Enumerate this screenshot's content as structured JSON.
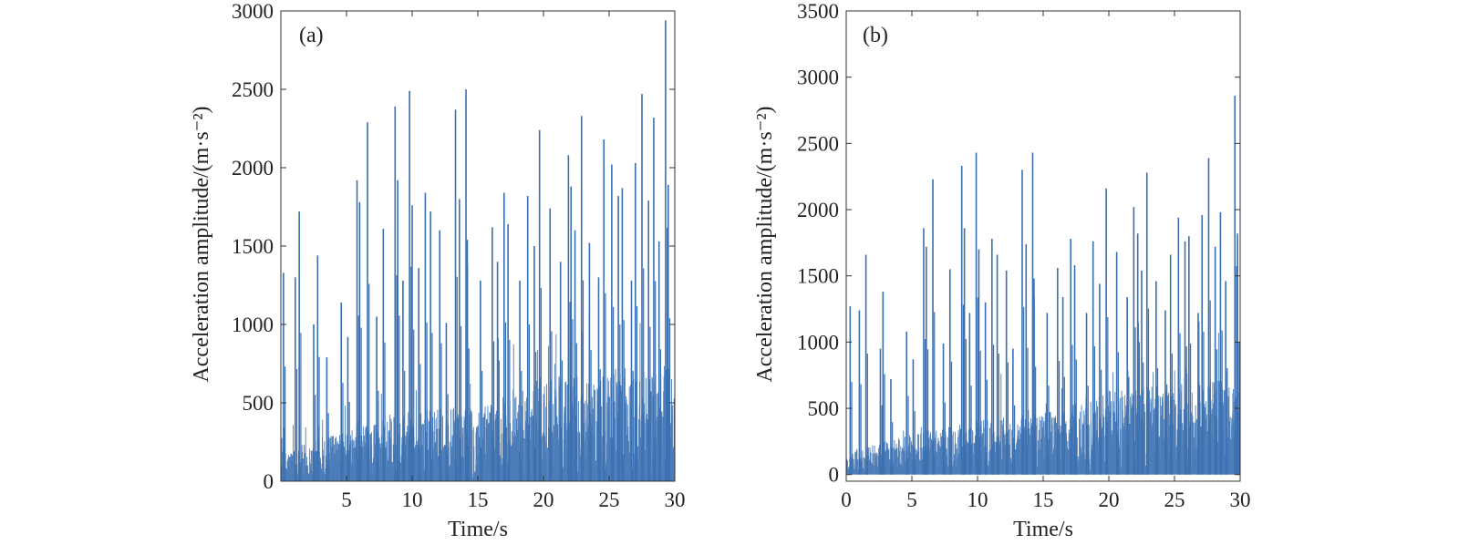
{
  "colors": {
    "signal": "#3a6fb0",
    "axis": "#333333",
    "background": "#ffffff"
  },
  "chart_data": [
    {
      "type": "line",
      "panel_label": "(a)",
      "xlabel": "Time/s",
      "ylabel": "Acceleration amplitude/(m·s⁻²)",
      "xlim": [
        0,
        30
      ],
      "ylim": [
        0,
        3000
      ],
      "xticks": [
        5,
        10,
        15,
        20,
        25,
        30
      ],
      "xtick_labels": [
        "5",
        "10",
        "15",
        "20",
        "25",
        "30"
      ],
      "yticks": [
        0,
        500,
        1000,
        1500,
        2000,
        2500,
        3000
      ],
      "ytick_labels": [
        "0",
        "500",
        "1000",
        "1500",
        "2000",
        "2500",
        "3000"
      ],
      "grid": false,
      "series": [
        {
          "values_description_note": "",
          "peaks_t": [
            0.2,
            1.1,
            1.4,
            2.5,
            2.8,
            3.5,
            4.6,
            5.1,
            5.8,
            6.0,
            6.6,
            7.3,
            7.8,
            8.7,
            8.9,
            9.3,
            9.8,
            10.0,
            10.5,
            11.0,
            11.4,
            12.1,
            12.6,
            13.3,
            13.6,
            14.1,
            14.2,
            15.2,
            16.1,
            16.5,
            17.0,
            17.3,
            18.2,
            18.8,
            19.3,
            19.7,
            20.5,
            21.3,
            21.9,
            22.1,
            22.4,
            22.9,
            23.5,
            24.2,
            24.6,
            25.2,
            25.7,
            26.0,
            26.7,
            27.0,
            27.5,
            28.0,
            28.4,
            28.8,
            29.3,
            29.5
          ],
          "peaks_v": [
            1330,
            1300,
            1720,
            1000,
            1440,
            790,
            1140,
            920,
            1920,
            1780,
            2290,
            1050,
            1610,
            2390,
            1920,
            1280,
            2490,
            1760,
            1360,
            1840,
            1720,
            1600,
            1010,
            2370,
            1800,
            2500,
            1540,
            1280,
            1620,
            1400,
            1840,
            1640,
            1280,
            1820,
            1500,
            2240,
            1740,
            1400,
            2080,
            1880,
            1600,
            2330,
            1520,
            1300,
            2180,
            2020,
            1820,
            1870,
            1280,
            2030,
            2470,
            1790,
            2320,
            1530,
            2940,
            1890
          ],
          "noise_envelope_t": [
            0,
            5,
            10,
            15,
            20,
            25,
            30
          ],
          "noise_envelope_v": [
            120,
            200,
            280,
            300,
            420,
            450,
            480
          ]
        }
      ]
    },
    {
      "type": "line",
      "panel_label": "(b)",
      "xlabel": "Time/s",
      "ylabel": "Acceleration amplitude/(m·s⁻²)",
      "xlim": [
        0,
        30
      ],
      "ylim": [
        -50,
        3500
      ],
      "xticks": [
        0,
        5,
        10,
        15,
        20,
        25,
        30
      ],
      "xtick_labels": [
        "0",
        "5",
        "10",
        "15",
        "20",
        "25",
        "30"
      ],
      "yticks": [
        0,
        500,
        1000,
        1500,
        2000,
        2500,
        3000,
        3500
      ],
      "ytick_labels": [
        "0",
        "500",
        "1000",
        "1500",
        "2000",
        "2500",
        "3000",
        "3500"
      ],
      "grid": false,
      "series": [
        {
          "values_description_note": "",
          "peaks_t": [
            0.3,
            1.0,
            1.5,
            2.6,
            2.8,
            3.4,
            4.6,
            5.1,
            5.9,
            6.1,
            6.6,
            7.4,
            7.9,
            8.8,
            9.0,
            9.4,
            9.9,
            10.1,
            10.6,
            11.1,
            11.5,
            12.2,
            12.7,
            13.4,
            13.7,
            14.2,
            14.3,
            15.3,
            16.1,
            16.5,
            17.1,
            17.4,
            18.3,
            18.8,
            19.3,
            19.8,
            20.6,
            21.4,
            21.9,
            22.2,
            22.5,
            22.9,
            23.6,
            24.3,
            24.7,
            25.3,
            25.8,
            26.1,
            26.8,
            27.1,
            27.6,
            28.1,
            28.5,
            28.9,
            29.6,
            29.8
          ],
          "peaks_v": [
            1270,
            1240,
            1660,
            950,
            1380,
            720,
            1080,
            870,
            1860,
            1720,
            2230,
            990,
            1550,
            2330,
            1860,
            1220,
            2430,
            1700,
            1300,
            1780,
            1660,
            1540,
            950,
            2300,
            1740,
            2430,
            1480,
            1220,
            1560,
            1340,
            1780,
            1580,
            1220,
            1760,
            1440,
            2160,
            1680,
            1340,
            2020,
            1820,
            1540,
            2280,
            1460,
            1240,
            1660,
            1940,
            1760,
            1800,
            1220,
            1960,
            2390,
            1720,
            1980,
            1460,
            2860,
            1820
          ],
          "noise_envelope_t": [
            0,
            5,
            10,
            15,
            20,
            25,
            30
          ],
          "noise_envelope_v": [
            110,
            190,
            260,
            290,
            400,
            430,
            460
          ]
        }
      ]
    }
  ]
}
